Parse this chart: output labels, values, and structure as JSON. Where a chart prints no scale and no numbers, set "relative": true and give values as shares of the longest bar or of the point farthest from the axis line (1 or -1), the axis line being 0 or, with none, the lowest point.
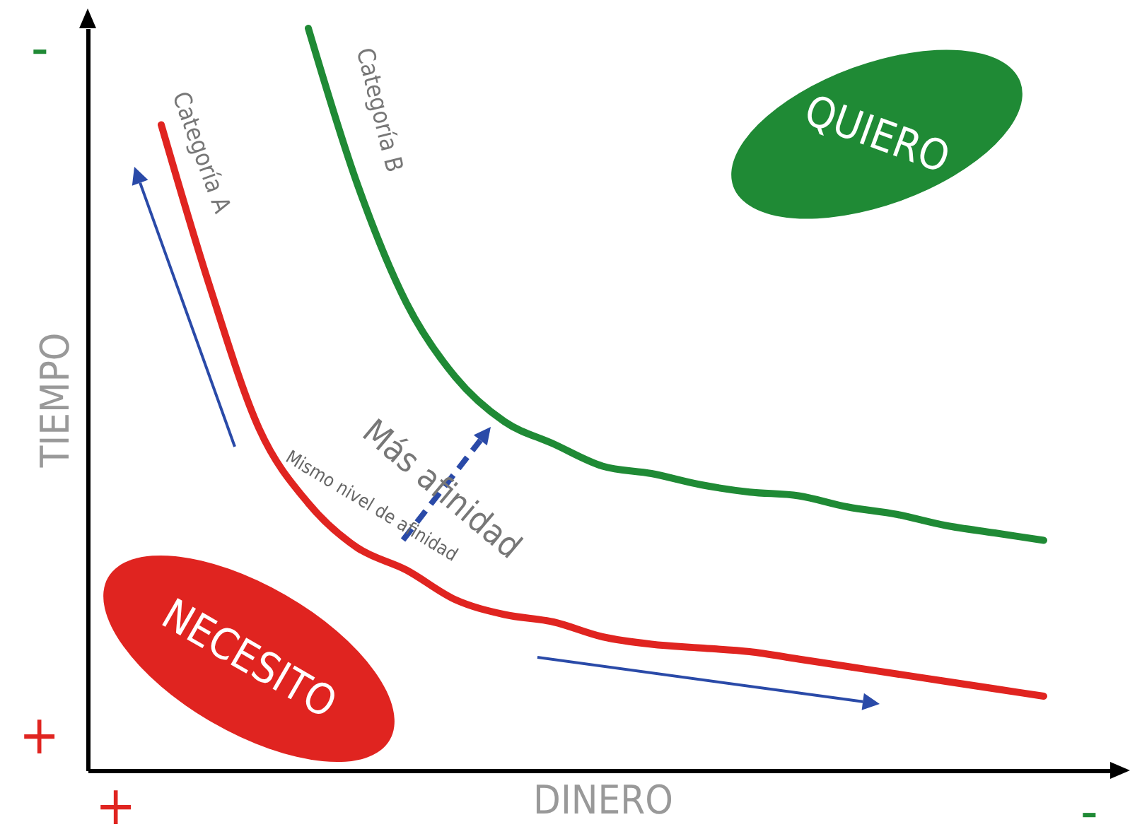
{
  "chart_data": {
    "type": "line",
    "relative": true,
    "xlabel": "DINERO",
    "ylabel": "TIEMPO",
    "categories": [
      null,
      null,
      null,
      null,
      null,
      null,
      null,
      null,
      null,
      null,
      null,
      null,
      null,
      null,
      null,
      null,
      null,
      null,
      null,
      null,
      null
    ],
    "series": [
      {
        "name": "Categoría A",
        "color": "#e02420",
        "values": [
          null,
          0.87,
          0.65,
          0.46,
          0.36,
          0.3,
          0.27,
          0.23,
          0.21,
          0.2,
          0.18,
          0.17,
          0.165,
          0.16,
          0.15,
          0.14,
          0.13,
          0.12,
          0.11,
          0.1,
          null
        ]
      },
      {
        "name": "Categoría B",
        "color": "#1f8a35",
        "values": [
          null,
          null,
          null,
          null,
          1.0,
          0.79,
          0.63,
          0.53,
          0.47,
          0.44,
          0.41,
          0.4,
          0.385,
          0.375,
          0.37,
          0.355,
          0.345,
          0.33,
          0.32,
          0.31,
          null
        ]
      }
    ],
    "annotations": [
      "QUIERO",
      "NECESITO",
      "Más afinidad",
      "Mismo nivel de afinidad",
      "-",
      "+",
      "+",
      "-"
    ],
    "marker": "none"
  }
}
